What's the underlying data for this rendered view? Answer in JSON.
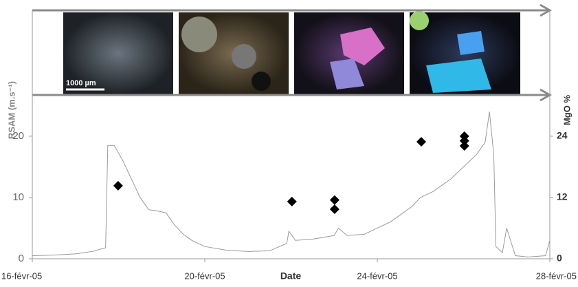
{
  "chart_data": {
    "type": "line",
    "scale_label": "1000 µm",
    "ylabel": "RSAM (m.s⁻¹)",
    "y2label": "MgO %",
    "xlabel": "Date",
    "xlim": [
      16,
      28
    ],
    "xticks": [
      {
        "value": 16,
        "label": "16-févr-05"
      },
      {
        "value": 20,
        "label": "20-févr-05"
      },
      {
        "value": 24,
        "label": "24-févr-05"
      },
      {
        "value": 28,
        "label": "28-févr-05"
      }
    ],
    "ylim": [
      0,
      26.5
    ],
    "yticks": [
      0,
      10,
      20
    ],
    "y2lim": [
      0,
      31.8
    ],
    "y2ticks": [
      0,
      12,
      24
    ],
    "series": [
      {
        "type": "line",
        "color": "#9a9a9a",
        "x": [
          16.0,
          16.5,
          17.0,
          17.4,
          17.7,
          17.75,
          17.9,
          18.1,
          18.3,
          18.5,
          18.7,
          18.9,
          19.1,
          19.3,
          19.5,
          19.7,
          20.0,
          20.5,
          21.0,
          21.5,
          21.9,
          21.95,
          22.1,
          22.5,
          23.0,
          23.1,
          23.3,
          23.7,
          24.0,
          24.3,
          24.5,
          24.8,
          25.0,
          25.3,
          25.7,
          26.0,
          26.3,
          26.5,
          26.6,
          26.7,
          26.75,
          26.9,
          27.0,
          27.2,
          27.5,
          27.9,
          28.0
        ],
        "values": [
          0.5,
          0.6,
          0.8,
          1.2,
          1.8,
          18.5,
          18.5,
          16,
          13,
          10,
          8,
          7.8,
          7.5,
          5.5,
          4,
          3,
          2,
          1.4,
          1.2,
          1.3,
          2.5,
          4.5,
          3,
          3.2,
          3.8,
          5,
          3.8,
          4,
          5,
          6,
          7,
          8.5,
          10,
          11,
          13,
          15,
          17,
          19,
          24,
          17,
          2,
          1,
          5,
          0.5,
          0.3,
          0.5,
          3
        ]
      },
      {
        "type": "scatter",
        "axis": "y2",
        "color": "#000000",
        "x": [
          17.99,
          22.02,
          23.01,
          23.01,
          25.02,
          26.02,
          26.02,
          26.02
        ],
        "values": [
          14.3,
          11.2,
          11.5,
          9.7,
          22.9,
          24.0,
          23.1,
          22.1
        ]
      }
    ]
  }
}
